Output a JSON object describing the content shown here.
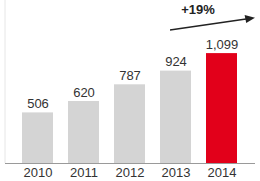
{
  "chart_data": {
    "type": "bar",
    "categories": [
      "2010",
      "2011",
      "2012",
      "2013",
      "2014"
    ],
    "values": [
      506,
      620,
      787,
      924,
      1099
    ],
    "value_labels": [
      "506",
      "620",
      "787",
      "924",
      "1,099"
    ],
    "colors": [
      "#d4d4d4",
      "#d4d4d4",
      "#d4d4d4",
      "#d4d4d4",
      "#e2001a"
    ],
    "ylim": [
      0,
      1630
    ],
    "data_labels": true,
    "tick_labels": "x",
    "annotation": "+19%"
  }
}
